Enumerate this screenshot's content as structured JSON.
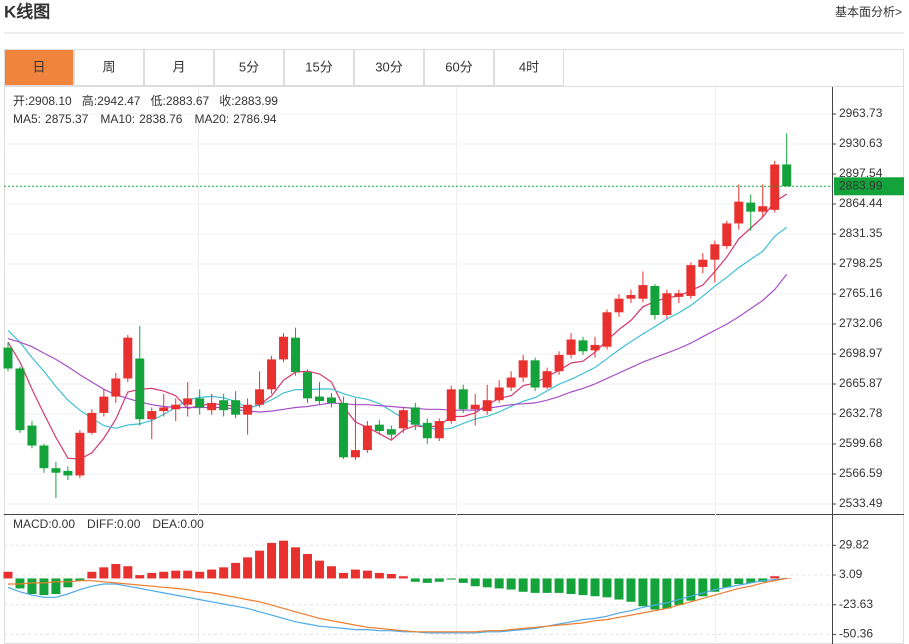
{
  "header": {
    "title": "K线图",
    "link": "基本面分析>"
  },
  "tabs": {
    "items": [
      "日",
      "周",
      "月",
      "5分",
      "15分",
      "30分",
      "60分",
      "4时"
    ],
    "active": 0
  },
  "chart_data": [
    {
      "type": "candlestick",
      "open": [
        2706,
        2683,
        2620,
        2598,
        2573,
        2570,
        2565,
        2612,
        2634,
        2652,
        2672,
        2694,
        2627,
        2636,
        2638,
        2643,
        2650,
        2637,
        2648,
        2648,
        2632,
        2643,
        2660,
        2693,
        2717,
        2679,
        2652,
        2651,
        2645,
        2585,
        2593,
        2621,
        2616,
        2617,
        2640,
        2623,
        2606,
        2625,
        2660,
        2638,
        2636,
        2648,
        2662,
        2673,
        2692,
        2662,
        2680,
        2698,
        2714,
        2703,
        2707,
        2745,
        2760,
        2760,
        2774,
        2742,
        2762,
        2763,
        2795,
        2803,
        2818,
        2843,
        2866,
        2856,
        2858,
        2908.1
      ],
      "high": [
        2712,
        2685,
        2625,
        2600,
        2580,
        2575,
        2615,
        2638,
        2660,
        2678,
        2720,
        2730,
        2640,
        2655,
        2650,
        2668,
        2660,
        2655,
        2655,
        2658,
        2650,
        2680,
        2697,
        2722,
        2728,
        2682,
        2668,
        2656,
        2652,
        2650,
        2625,
        2626,
        2620,
        2640,
        2645,
        2628,
        2628,
        2664,
        2665,
        2655,
        2665,
        2670,
        2680,
        2698,
        2695,
        2684,
        2702,
        2722,
        2718,
        2718,
        2748,
        2765,
        2770,
        2790,
        2776,
        2770,
        2770,
        2800,
        2810,
        2824,
        2846,
        2886,
        2875,
        2886,
        2912,
        2942.47
      ],
      "low": [
        2680,
        2612,
        2595,
        2568,
        2540,
        2560,
        2562,
        2610,
        2630,
        2645,
        2668,
        2620,
        2605,
        2630,
        2625,
        2630,
        2632,
        2632,
        2630,
        2628,
        2610,
        2640,
        2655,
        2690,
        2675,
        2645,
        2643,
        2640,
        2583,
        2582,
        2590,
        2610,
        2605,
        2612,
        2615,
        2600,
        2603,
        2622,
        2634,
        2620,
        2632,
        2645,
        2658,
        2668,
        2658,
        2660,
        2676,
        2694,
        2698,
        2695,
        2704,
        2740,
        2755,
        2756,
        2737,
        2738,
        2755,
        2760,
        2788,
        2778,
        2815,
        2836,
        2835,
        2850,
        2855,
        2883.67
      ],
      "close": [
        2683,
        2615,
        2598,
        2573,
        2568,
        2565,
        2612,
        2634,
        2652,
        2672,
        2717,
        2627,
        2636,
        2640,
        2643,
        2650,
        2640,
        2645,
        2637,
        2632,
        2643,
        2660,
        2693,
        2718,
        2679,
        2650,
        2647,
        2645,
        2585,
        2593,
        2620,
        2614,
        2610,
        2637,
        2621,
        2606,
        2625,
        2660,
        2638,
        2643,
        2648,
        2662,
        2673,
        2692,
        2662,
        2680,
        2698,
        2715,
        2702,
        2709,
        2745,
        2760,
        2764,
        2775,
        2742,
        2766,
        2766,
        2797,
        2803,
        2820,
        2843,
        2867,
        2856,
        2862,
        2908,
        2883.99
      ],
      "up_color": "#e8312f",
      "down_color": "#14a33b",
      "readout": [
        {
          "name": "开:",
          "value": 2908.1,
          "value_label": "2908.10"
        },
        {
          "name": "高:",
          "value": 2942.47,
          "value_label": "2942.47"
        },
        {
          "name": "低:",
          "value": 2883.67,
          "value_label": "2883.67"
        },
        {
          "name": "收:",
          "value": 2883.99,
          "value_label": "2883.99"
        }
      ],
      "series": [
        {
          "name": "MA5:",
          "color": "#d4376e",
          "value_label": "2875.37",
          "values": [
            2712,
            2690,
            2660,
            2633,
            2607,
            2584,
            2583,
            2590,
            2606,
            2627,
            2657,
            2660,
            2661,
            2658,
            2653,
            2639,
            2642,
            2644,
            2643,
            2641,
            2639,
            2643,
            2653,
            2670,
            2679,
            2680,
            2677,
            2668,
            2641,
            2624,
            2618,
            2611,
            2604,
            2615,
            2620,
            2618,
            2620,
            2630,
            2630,
            2634,
            2643,
            2650,
            2653,
            2664,
            2667,
            2674,
            2681,
            2689,
            2691,
            2701,
            2714,
            2726,
            2736,
            2751,
            2757,
            2761,
            2763,
            2769,
            2775,
            2790,
            2806,
            2826,
            2838,
            2850,
            2867,
            2875.37
          ]
        },
        {
          "name": "MA10:",
          "color": "#3fbfd2",
          "value_label": "2838.76",
          "values": [
            2725,
            2712,
            2695,
            2680,
            2663,
            2648,
            2637,
            2628,
            2620,
            2617,
            2620.6,
            2621.8,
            2625.6,
            2632.3,
            2639.8,
            2648.3,
            2651.1,
            2652.2,
            2650.7,
            2646.7,
            2639.3,
            2642.6,
            2648.3,
            2656.1,
            2659.7,
            2659.7,
            2660.4,
            2660.4,
            2655.2,
            2651.3,
            2649,
            2644.4,
            2636.1,
            2628,
            2622.2,
            2617.8,
            2615.6,
            2617.1,
            2622.4,
            2627.4,
            2630.2,
            2635,
            2641.3,
            2646.8,
            2650.9,
            2658.3,
            2665.6,
            2671.1,
            2677.5,
            2684.1,
            2693.8,
            2703.6,
            2712.7,
            2721,
            2729,
            2737.6,
            2744.4,
            2752.6,
            2762.7,
            2773.8,
            2783.6,
            2794.3,
            2803.5,
            2812.2,
            2828.8,
            2838.76
          ]
        },
        {
          "name": "MA20:",
          "color": "#a84fc7",
          "value_label": "2786.94",
          "values": [
            2716,
            2712,
            2707,
            2700,
            2693,
            2685,
            2676,
            2668,
            2660,
            2654,
            2650,
            2646,
            2643,
            2641,
            2640,
            2640,
            2640,
            2640,
            2640,
            2638,
            2636,
            2635,
            2636,
            2638,
            2640,
            2641,
            2643,
            2645,
            2644,
            2643,
            2643,
            2642,
            2641,
            2640,
            2639,
            2638,
            2638,
            2637,
            2637,
            2637,
            2639,
            2641,
            2643,
            2644,
            2645,
            2648,
            2652,
            2657,
            2661,
            2666,
            2672,
            2678,
            2684,
            2690,
            2695,
            2700,
            2705,
            2711,
            2718,
            2725,
            2732,
            2740,
            2749,
            2758,
            2770,
            2786.94
          ]
        }
      ],
      "ylim": [
        2523.56,
        2993.52
      ],
      "yticks": [
        2963.73,
        2930.63,
        2897.54,
        2864.44,
        2831.35,
        2798.25,
        2765.16,
        2732.06,
        2698.97,
        2665.87,
        2632.78,
        2599.68,
        2566.59,
        2533.49
      ],
      "grid": true
    },
    {
      "type": "macd",
      "name": "MACD:",
      "color_label": "#e8312f",
      "value": 0,
      "value_label": "0.00",
      "up_color": "#e8312f",
      "down_color": "#14a33b",
      "values": [
        6,
        -9,
        -14,
        -15,
        -14,
        -8,
        -2,
        6,
        10,
        13,
        11,
        3,
        5,
        6,
        7,
        7,
        6,
        8,
        10,
        14,
        19,
        25,
        32,
        34,
        28,
        22,
        16,
        11,
        5,
        8,
        7,
        5,
        4,
        2,
        -3,
        -4,
        -3,
        -1,
        -4,
        -7,
        -8,
        -9,
        -10,
        -12,
        -13,
        -13,
        -13,
        -14,
        -15,
        -16,
        -17,
        -19,
        -21,
        -25,
        -28,
        -27,
        -24,
        -20,
        -16,
        -12,
        -8,
        -5,
        -4,
        -3,
        2,
        0
      ],
      "series": [
        {
          "name": "DIFF:",
          "color": "#4ea9e6",
          "value_label": "0.00",
          "values": [
            -8,
            -12,
            -15,
            -17,
            -17,
            -14,
            -10,
            -7,
            -5,
            -5,
            -7,
            -9,
            -11,
            -13,
            -15,
            -17,
            -19,
            -21,
            -23,
            -25,
            -27,
            -30,
            -33,
            -36,
            -39,
            -41,
            -43,
            -44,
            -45,
            -46,
            -46,
            -47,
            -47,
            -48,
            -48,
            -49,
            -49,
            -49,
            -49,
            -49,
            -48,
            -48,
            -47,
            -46,
            -45,
            -43,
            -41,
            -39,
            -37,
            -36,
            -34,
            -31,
            -29,
            -26,
            -24,
            -22,
            -19,
            -16,
            -13,
            -10,
            -8,
            -6,
            -4,
            -2,
            -1,
            0
          ]
        },
        {
          "name": "DEA:",
          "color": "#f07c2a",
          "value_label": "0.00",
          "values": [
            -5,
            -5,
            -4,
            -4,
            -3,
            -3,
            -2,
            -2,
            -3,
            -4,
            -5,
            -6,
            -7,
            -8,
            -9,
            -10,
            -12,
            -13,
            -15,
            -17,
            -19,
            -21,
            -24,
            -27,
            -30,
            -33,
            -36,
            -38,
            -40,
            -42,
            -44,
            -45,
            -46,
            -47,
            -48,
            -48,
            -48,
            -48,
            -48,
            -48,
            -47,
            -47,
            -46,
            -45,
            -44,
            -43,
            -42,
            -41,
            -40,
            -38,
            -37,
            -35,
            -33,
            -31,
            -29,
            -27,
            -24,
            -21,
            -18,
            -15,
            -12,
            -9,
            -7,
            -4,
            -2,
            0
          ]
        }
      ],
      "ylim": [
        -59,
        57.1
      ],
      "yticks": [
        29.82,
        3.09,
        -23.63,
        -50.36
      ],
      "grid": true
    }
  ]
}
